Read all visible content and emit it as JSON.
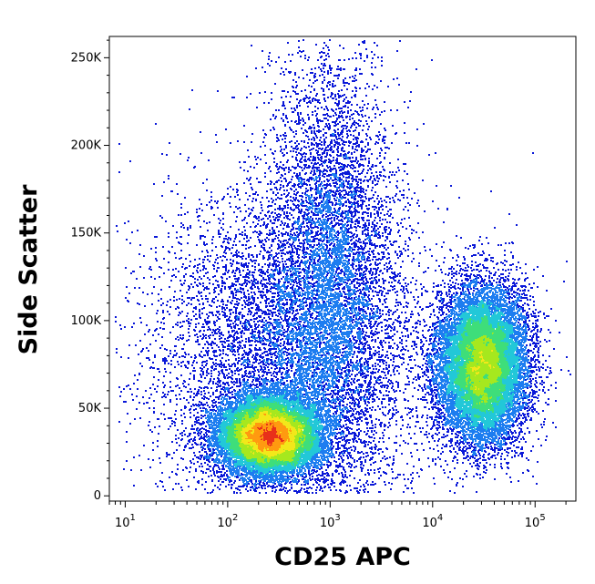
{
  "chart_data": {
    "type": "scatter",
    "subtype": "flow-cytometry-density-pseudocolor",
    "xlabel": "CD25 APC",
    "ylabel": "Side Scatter",
    "x_scale": "log",
    "xlim": [
      7,
      250000
    ],
    "ylim": [
      -3000,
      262144
    ],
    "x_ticks": [
      {
        "value": 10,
        "base": "10",
        "exp": "1"
      },
      {
        "value": 100,
        "base": "10",
        "exp": "2"
      },
      {
        "value": 1000,
        "base": "10",
        "exp": "3"
      },
      {
        "value": 10000,
        "base": "10",
        "exp": "4"
      },
      {
        "value": 100000,
        "base": "10",
        "exp": "5"
      }
    ],
    "y_ticks": [
      {
        "value": 0,
        "label": "0"
      },
      {
        "value": 50000,
        "label": "50K"
      },
      {
        "value": 100000,
        "label": "100K"
      },
      {
        "value": 150000,
        "label": "150K"
      },
      {
        "value": 200000,
        "label": "200K"
      },
      {
        "value": 250000,
        "label": "250K"
      }
    ],
    "density_colors": [
      "#0a18d8",
      "#1d7df0",
      "#22c8d8",
      "#3ede7a",
      "#a6e81e",
      "#f2e81a",
      "#ff9a10",
      "#e8301a"
    ],
    "populations": [
      {
        "x_center": 250,
        "y_center": 35000,
        "x_spread_decades": 0.25,
        "y_spread": 11000,
        "weight": 0.34
      },
      {
        "x_center": 30000,
        "y_center": 75000,
        "x_spread_decades": 0.22,
        "y_spread": 22000,
        "weight": 0.34
      },
      {
        "x_center": 1000,
        "y_center": 140000,
        "x_spread_decades": 0.3,
        "y_spread": 60000,
        "weight": 0.12
      },
      {
        "x_center": 400,
        "y_center": 80000,
        "x_spread_decades": 0.65,
        "y_spread": 50000,
        "weight": 0.2
      }
    ]
  }
}
